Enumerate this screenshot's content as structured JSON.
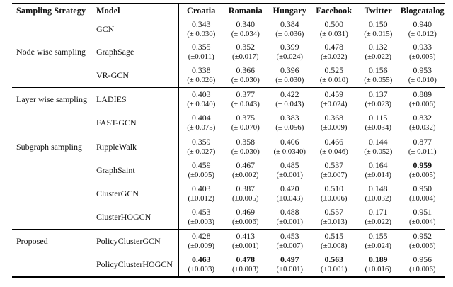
{
  "table": {
    "columns": [
      "Sampling Strategy",
      "Model",
      "Croatia",
      "Romania",
      "Hungary",
      "Facebook",
      "Twitter",
      "Blogcatalog"
    ],
    "text_color": "#131313",
    "rule_color": "#000000",
    "groups": [
      {
        "strategy": "",
        "models": [
          {
            "name": "GCN",
            "cells": [
              {
                "v": "0.343",
                "e": "(± 0.030)"
              },
              {
                "v": "0.340",
                "e": "(± 0.034)"
              },
              {
                "v": "0.384",
                "e": "(± 0.036)"
              },
              {
                "v": "0.500",
                "e": "(± 0.031)"
              },
              {
                "v": "0.150",
                "e": "(± 0.015)"
              },
              {
                "v": "0.940",
                "e": "(± 0.012)"
              }
            ]
          }
        ]
      },
      {
        "strategy": "Node wise sampling",
        "models": [
          {
            "name": "GraphSage",
            "cells": [
              {
                "v": "0.355",
                "e": "(±0.011)"
              },
              {
                "v": "0.352",
                "e": "(±0.017)"
              },
              {
                "v": "0.399",
                "e": "(±0.024)"
              },
              {
                "v": "0.478",
                "e": "(±0.022)"
              },
              {
                "v": "0.132",
                "e": "(±0.022)"
              },
              {
                "v": "0.933",
                "e": "(±0.005)"
              }
            ]
          },
          {
            "name": "VR-GCN",
            "cells": [
              {
                "v": "0.338",
                "e": "(± 0.026)"
              },
              {
                "v": "0.366",
                "e": "(± 0.030)"
              },
              {
                "v": "0.396",
                "e": "(± 0.030)"
              },
              {
                "v": "0.525",
                "e": "(± 0.010)"
              },
              {
                "v": "0.156",
                "e": "(± 0.055)"
              },
              {
                "v": "0.953",
                "e": "(± 0.010)"
              }
            ]
          }
        ]
      },
      {
        "strategy": "Layer wise sampling",
        "models": [
          {
            "name": "LADIES",
            "cells": [
              {
                "v": "0.403",
                "e": "(± 0.040)"
              },
              {
                "v": "0.377",
                "e": "(± 0.043)"
              },
              {
                "v": "0.422",
                "e": "(± 0.043)"
              },
              {
                "v": "0.459",
                "e": "(±0.024)"
              },
              {
                "v": "0.137",
                "e": "(±0.023)"
              },
              {
                "v": "0.889",
                "e": "(±0.006)"
              }
            ]
          },
          {
            "name": "FAST-GCN",
            "cells": [
              {
                "v": "0.404",
                "e": "(± 0.075)"
              },
              {
                "v": "0.375",
                "e": "(± 0.070)"
              },
              {
                "v": "0.383",
                "e": "(± 0.056)"
              },
              {
                "v": "0.368",
                "e": "(±0.009)"
              },
              {
                "v": "0.115",
                "e": "(±0.034)"
              },
              {
                "v": "0.832",
                "e": "(±0.032)"
              }
            ]
          }
        ]
      },
      {
        "strategy": "Subgraph sampling",
        "models": [
          {
            "name": "RippleWalk",
            "cells": [
              {
                "v": "0.359",
                "e": "(± 0.027)"
              },
              {
                "v": "0.358",
                "e": "(± 0.030)"
              },
              {
                "v": "0.406",
                "e": "(± 0.0340)"
              },
              {
                "v": "0.466",
                "e": "(± 0.046)"
              },
              {
                "v": "0.144",
                "e": "(± 0.052)"
              },
              {
                "v": "0.877",
                "e": "(± 0.011)"
              }
            ]
          },
          {
            "name": "GraphSaint",
            "cells": [
              {
                "v": "0.459",
                "e": "(±0.005)"
              },
              {
                "v": "0.467",
                "e": "(±0.002)"
              },
              {
                "v": "0.485",
                "e": "(±0.001)"
              },
              {
                "v": "0.537",
                "e": "(±0.007)"
              },
              {
                "v": "0.164",
                "e": "(±0.014)"
              },
              {
                "v": "0.959",
                "e": "(±0.005)",
                "bold": true
              }
            ]
          },
          {
            "name": "ClusterGCN",
            "cells": [
              {
                "v": "0.403",
                "e": "(±0.012)"
              },
              {
                "v": "0.387",
                "e": "(±0.005)"
              },
              {
                "v": "0.420",
                "e": "(±0.043)"
              },
              {
                "v": "0.510",
                "e": "(±0.006)"
              },
              {
                "v": "0.148",
                "e": "(±0.032)"
              },
              {
                "v": "0.950",
                "e": "(±0.004)"
              }
            ]
          },
          {
            "name": "ClusterHOGCN",
            "cells": [
              {
                "v": "0.453",
                "e": "(±0.003)"
              },
              {
                "v": "0.469",
                "e": "(±0.006)"
              },
              {
                "v": "0.488",
                "e": "(±0.001)"
              },
              {
                "v": "0.557",
                "e": "(±0.013)"
              },
              {
                "v": "0.171",
                "e": "(±0.022)"
              },
              {
                "v": "0.951",
                "e": "(±0.004)"
              }
            ]
          }
        ]
      },
      {
        "strategy": "Proposed",
        "models": [
          {
            "name": "PolicyClusterGCN",
            "cells": [
              {
                "v": "0.428",
                "e": "(±0.009)"
              },
              {
                "v": "0.413",
                "e": "(±0.001)"
              },
              {
                "v": "0.453",
                "e": "(±0.007)"
              },
              {
                "v": "0.515",
                "e": "(±0.008)"
              },
              {
                "v": "0.155",
                "e": "(±0.024)"
              },
              {
                "v": "0.952",
                "e": "(±0.006)"
              }
            ]
          },
          {
            "name": "PolicyClusterHOGCN",
            "cells": [
              {
                "v": "0.463",
                "e": "(±0.003)",
                "bold": true
              },
              {
                "v": "0.478",
                "e": "(±0.003)",
                "bold": true
              },
              {
                "v": "0.497",
                "e": "(±0.001)",
                "bold": true
              },
              {
                "v": "0.563",
                "e": "(±0.001)",
                "bold": true
              },
              {
                "v": "0.189",
                "e": "(±0.016)",
                "bold": true
              },
              {
                "v": "0.956",
                "e": "(±0.006)"
              }
            ]
          }
        ]
      }
    ]
  }
}
